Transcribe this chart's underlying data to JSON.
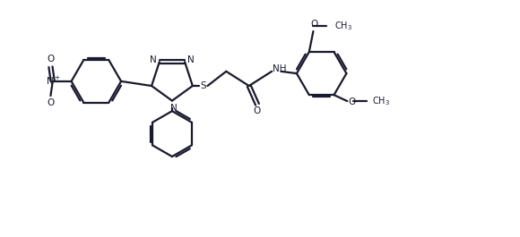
{
  "bg_color": "#ffffff",
  "line_color": "#1a1a2e",
  "line_width": 1.6,
  "fig_width": 5.8,
  "fig_height": 2.65,
  "dpi": 100,
  "xlim": [
    0,
    11
  ],
  "ylim": [
    -2.5,
    3.2
  ]
}
